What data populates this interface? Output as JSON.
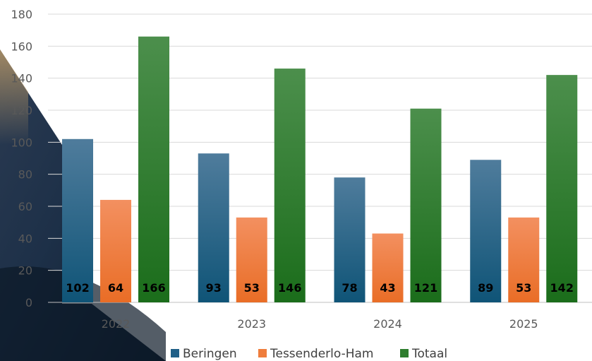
{
  "chart_data": {
    "type": "bar",
    "categories": [
      "2022",
      "2023",
      "2024",
      "2025"
    ],
    "series": [
      {
        "name": "Beringen",
        "values": [
          102,
          93,
          78,
          89
        ],
        "color": "#1f5f87"
      },
      {
        "name": "Tessenderlo-Ham",
        "values": [
          64,
          53,
          43,
          53
        ],
        "color": "#ef7d3c"
      },
      {
        "name": "Totaal",
        "values": [
          166,
          146,
          121,
          142
        ],
        "color": "#2e7d2e"
      }
    ],
    "ylim": [
      0,
      180
    ],
    "yticks": [
      0,
      20,
      40,
      60,
      80,
      100,
      120,
      140,
      160,
      180
    ],
    "grid": true,
    "legend": "bottom",
    "data_labels": "inside-base"
  }
}
